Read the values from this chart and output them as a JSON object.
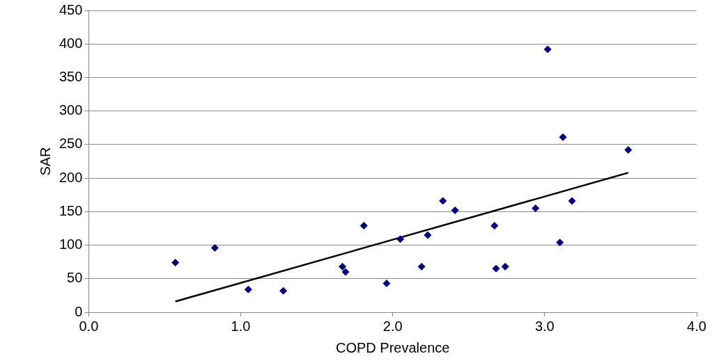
{
  "chart_data": {
    "type": "scatter",
    "xlabel": "COPD Prevalence",
    "ylabel": "SAR",
    "xlim": [
      0,
      4
    ],
    "xticks": [
      {
        "value": 0,
        "label": "0.0"
      },
      {
        "value": 1,
        "label": "1.0"
      },
      {
        "value": 2,
        "label": "2.0"
      },
      {
        "value": 3,
        "label": "3.0"
      },
      {
        "value": 4,
        "label": "4.0"
      }
    ],
    "ylim": [
      0,
      450
    ],
    "yticks": [
      0,
      50,
      100,
      150,
      200,
      250,
      300,
      350,
      400,
      450
    ],
    "grid": "y",
    "legend": false,
    "marker": "diamond",
    "series": [
      {
        "color": "#000080",
        "x": [
          0.57,
          0.83,
          1.05,
          1.28,
          1.67,
          1.69,
          1.81,
          1.96,
          2.05,
          2.19,
          2.23,
          2.33,
          2.41,
          2.67,
          2.68,
          2.74,
          2.94,
          3.02,
          3.1,
          3.12,
          3.18,
          3.55
        ],
        "values": [
          74,
          96,
          34,
          32,
          68,
          60,
          129,
          43,
          109,
          68,
          115,
          166,
          152,
          129,
          65,
          68,
          155,
          392,
          104,
          261,
          166,
          242
        ]
      },
      {
        "type": "line",
        "marker": "none",
        "color": "#000000",
        "x": [
          0.57,
          3.55
        ],
        "values": [
          16,
          208
        ]
      }
    ]
  }
}
